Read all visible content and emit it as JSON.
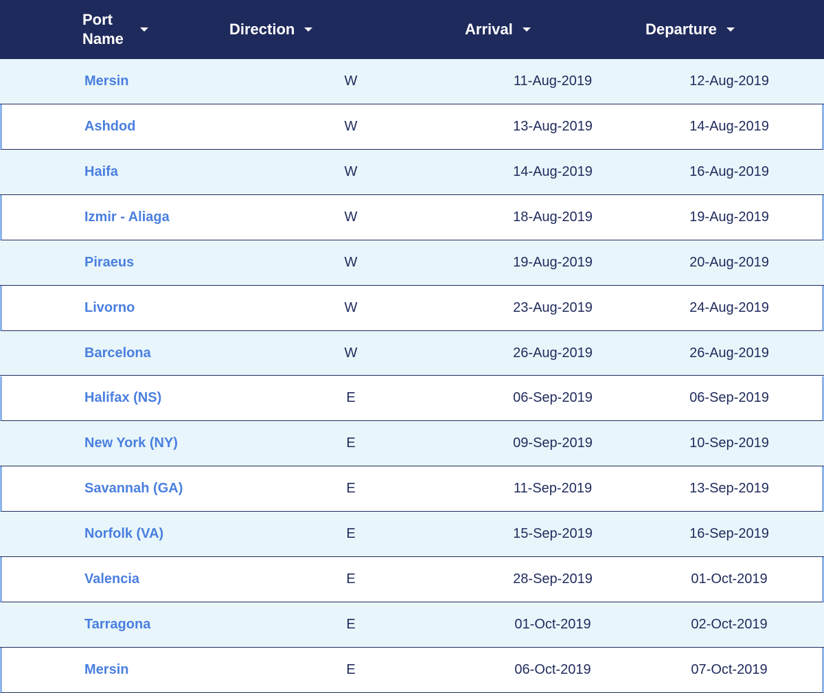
{
  "table": {
    "headers": [
      "Port Name",
      "Direction",
      "Arrival",
      "Departure"
    ],
    "rows": [
      [
        "Mersin",
        "W",
        "11-Aug-2019",
        "12-Aug-2019"
      ],
      [
        "Ashdod",
        "W",
        "13-Aug-2019",
        "14-Aug-2019"
      ],
      [
        "Haifa",
        "W",
        "14-Aug-2019",
        "16-Aug-2019"
      ],
      [
        "Izmir - Aliaga",
        "W",
        "18-Aug-2019",
        "19-Aug-2019"
      ],
      [
        "Piraeus",
        "W",
        "19-Aug-2019",
        "20-Aug-2019"
      ],
      [
        "Livorno",
        "W",
        "23-Aug-2019",
        "24-Aug-2019"
      ],
      [
        "Barcelona",
        "W",
        "26-Aug-2019",
        "26-Aug-2019"
      ],
      [
        "Halifax (NS)",
        "E",
        "06-Sep-2019",
        "06-Sep-2019"
      ],
      [
        "New York (NY)",
        "E",
        "09-Sep-2019",
        "10-Sep-2019"
      ],
      [
        "Savannah (GA)",
        "E",
        "11-Sep-2019",
        "13-Sep-2019"
      ],
      [
        "Norfolk (VA)",
        "E",
        "15-Sep-2019",
        "16-Sep-2019"
      ],
      [
        "Valencia",
        "E",
        "28-Sep-2019",
        "01-Oct-2019"
      ],
      [
        "Tarragona",
        "E",
        "01-Oct-2019",
        "02-Oct-2019"
      ],
      [
        "Mersin",
        "E",
        "06-Oct-2019",
        "07-Oct-2019"
      ]
    ]
  }
}
